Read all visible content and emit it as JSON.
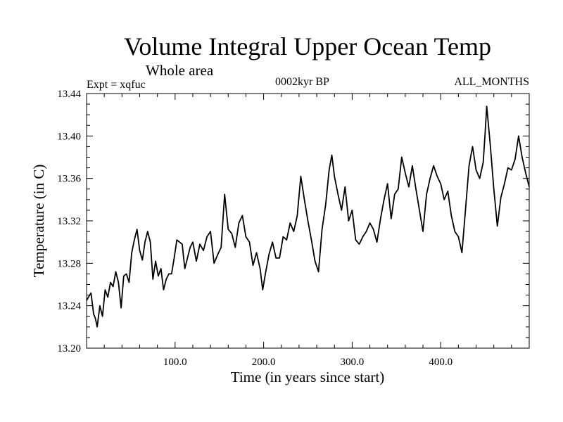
{
  "chart_data": {
    "type": "line",
    "title": "Volume Integral Upper Ocean Temp",
    "subtitle": "Whole area",
    "experiment_label": "Expt = xqfuc",
    "period_label": "0002kyr BP",
    "months_label": "ALL_MONTHS",
    "xlabel": "Time (in years since start)",
    "ylabel": "Temperature (in C)",
    "xlim": [
      0,
      500
    ],
    "ylim": [
      13.2,
      13.44
    ],
    "x_ticks": [
      100,
      200,
      300,
      400
    ],
    "x_tick_labels": [
      "100.0",
      "200.0",
      "300.0",
      "400.0"
    ],
    "y_ticks": [
      13.2,
      13.24,
      13.28,
      13.32,
      13.36,
      13.4,
      13.44
    ],
    "y_tick_labels": [
      "13.20",
      "13.24",
      "13.28",
      "13.32",
      "13.36",
      "13.40",
      "13.44"
    ],
    "grid": false,
    "series": [
      {
        "name": "Volume integral upper ocean temperature",
        "color": "#000000",
        "x": [
          0,
          5,
          8,
          10,
          12,
          15,
          18,
          21,
          24,
          27,
          30,
          33,
          36,
          39,
          42,
          45,
          48,
          51,
          54,
          57,
          60,
          63,
          66,
          69,
          72,
          75,
          78,
          81,
          84,
          87,
          90,
          93,
          96,
          99,
          102,
          105,
          108,
          111,
          114,
          117,
          120,
          124,
          128,
          132,
          136,
          140,
          144,
          148,
          152,
          156,
          160,
          164,
          168,
          172,
          176,
          180,
          184,
          188,
          192,
          196,
          199,
          202,
          206,
          210,
          214,
          218,
          222,
          226,
          230,
          234,
          238,
          242,
          246,
          250,
          254,
          258,
          262,
          266,
          270,
          274,
          277,
          280,
          284,
          288,
          292,
          296,
          300,
          304,
          308,
          312,
          316,
          320,
          324,
          328,
          332,
          336,
          340,
          344,
          348,
          352,
          356,
          360,
          364,
          368,
          372,
          376,
          380,
          384,
          388,
          392,
          396,
          400,
          404,
          408,
          412,
          416,
          420,
          424,
          428,
          432,
          436,
          440,
          444,
          448,
          450,
          452,
          456,
          460,
          464,
          468,
          472,
          476,
          480,
          484,
          488,
          492,
          496,
          500
        ],
        "values": [
          13.245,
          13.252,
          13.232,
          13.228,
          13.22,
          13.24,
          13.23,
          13.255,
          13.248,
          13.262,
          13.258,
          13.272,
          13.262,
          13.238,
          13.268,
          13.27,
          13.262,
          13.29,
          13.302,
          13.312,
          13.292,
          13.283,
          13.3,
          13.31,
          13.3,
          13.265,
          13.282,
          13.268,
          13.275,
          13.255,
          13.265,
          13.27,
          13.27,
          13.285,
          13.302,
          13.3,
          13.298,
          13.275,
          13.285,
          13.295,
          13.3,
          13.282,
          13.298,
          13.292,
          13.305,
          13.31,
          13.28,
          13.288,
          13.295,
          13.345,
          13.312,
          13.308,
          13.295,
          13.318,
          13.325,
          13.305,
          13.3,
          13.278,
          13.29,
          13.275,
          13.255,
          13.27,
          13.288,
          13.3,
          13.285,
          13.285,
          13.305,
          13.302,
          13.318,
          13.31,
          13.325,
          13.362,
          13.34,
          13.32,
          13.302,
          13.282,
          13.272,
          13.312,
          13.335,
          13.368,
          13.382,
          13.362,
          13.345,
          13.33,
          13.352,
          13.32,
          13.33,
          13.302,
          13.298,
          13.305,
          13.31,
          13.318,
          13.312,
          13.3,
          13.322,
          13.34,
          13.355,
          13.322,
          13.345,
          13.35,
          13.38,
          13.365,
          13.352,
          13.372,
          13.35,
          13.33,
          13.31,
          13.345,
          13.36,
          13.372,
          13.362,
          13.355,
          13.34,
          13.348,
          13.325,
          13.31,
          13.305,
          13.29,
          13.33,
          13.372,
          13.39,
          13.368,
          13.36,
          13.375,
          13.4,
          13.428,
          13.392,
          13.35,
          13.315,
          13.342,
          13.355,
          13.37,
          13.368,
          13.378,
          13.4,
          13.38,
          13.365,
          13.352
        ]
      }
    ]
  }
}
